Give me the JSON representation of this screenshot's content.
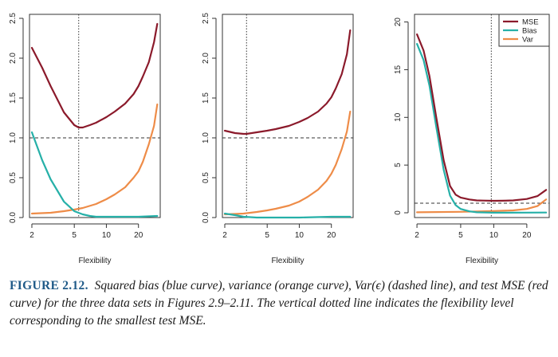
{
  "caption": {
    "label": "FIGURE 2.12.",
    "text": "Squared bias (blue curve), variance (orange curve), Var(ϵ) (dashed line), and test MSE (red curve) for the three data sets in Figures 2.9–2.11. The vertical dotted line indicates the flexibility level corresponding to the smallest test MSE."
  },
  "colors": {
    "mse": "#8b1a2b",
    "bias": "#26b0a8",
    "var": "#ee8c48",
    "axis": "#333333"
  },
  "chart_data": [
    {
      "type": "line",
      "xlabel": "Flexibility",
      "x_scale": "log",
      "xlim": [
        1.9,
        32
      ],
      "ylim": [
        0,
        2.55
      ],
      "x_ticks": [
        2,
        5,
        10,
        20
      ],
      "y_ticks": [
        0.0,
        0.5,
        1.0,
        1.5,
        2.0,
        2.5
      ],
      "y_tick_labels": [
        "0.0",
        "0.5",
        "1.0",
        "1.5",
        "2.0",
        "2.5"
      ],
      "hline": 1.0,
      "vline": 5.5,
      "series": [
        {
          "key": "mse",
          "x": [
            2,
            2.5,
            3,
            4,
            5,
            5.5,
            6,
            7,
            8,
            10,
            12,
            15,
            18,
            20,
            22,
            25,
            28,
            30
          ],
          "y": [
            2.13,
            1.88,
            1.65,
            1.32,
            1.16,
            1.13,
            1.13,
            1.16,
            1.19,
            1.26,
            1.33,
            1.43,
            1.55,
            1.65,
            1.77,
            1.95,
            2.2,
            2.43
          ]
        },
        {
          "key": "bias",
          "x": [
            2,
            2.5,
            3,
            4,
            5,
            6,
            7,
            8,
            10,
            15,
            20,
            30
          ],
          "y": [
            1.07,
            0.72,
            0.48,
            0.2,
            0.08,
            0.04,
            0.02,
            0.01,
            0.01,
            0.01,
            0.01,
            0.02
          ]
        },
        {
          "key": "var",
          "x": [
            2,
            3,
            4,
            5,
            6,
            8,
            10,
            12,
            15,
            18,
            20,
            22,
            25,
            28,
            30
          ],
          "y": [
            0.05,
            0.06,
            0.08,
            0.1,
            0.12,
            0.17,
            0.23,
            0.29,
            0.38,
            0.5,
            0.58,
            0.7,
            0.92,
            1.15,
            1.42
          ]
        }
      ]
    },
    {
      "type": "line",
      "xlabel": "Flexibility",
      "x_scale": "log",
      "xlim": [
        1.9,
        32
      ],
      "ylim": [
        0,
        2.55
      ],
      "x_ticks": [
        2,
        5,
        10,
        20
      ],
      "y_ticks": [
        0.0,
        0.5,
        1.0,
        1.5,
        2.0,
        2.5
      ],
      "y_tick_labels": [
        "0.0",
        "0.5",
        "1.0",
        "1.5",
        "2.0",
        "2.5"
      ],
      "hline": 1.0,
      "vline": 3.2,
      "series": [
        {
          "key": "mse",
          "x": [
            2,
            2.5,
            3,
            3.2,
            4,
            5,
            6,
            8,
            10,
            12,
            15,
            18,
            20,
            22,
            25,
            28,
            30
          ],
          "y": [
            1.09,
            1.06,
            1.05,
            1.05,
            1.07,
            1.09,
            1.11,
            1.15,
            1.2,
            1.25,
            1.33,
            1.43,
            1.51,
            1.62,
            1.8,
            2.05,
            2.35
          ]
        },
        {
          "key": "bias",
          "x": [
            2,
            2.5,
            3,
            4,
            5,
            10,
            20,
            30
          ],
          "y": [
            0.05,
            0.03,
            0.01,
            0.0,
            0.0,
            0.0,
            0.01,
            0.01
          ]
        },
        {
          "key": "var",
          "x": [
            2,
            3,
            4,
            5,
            6,
            8,
            10,
            12,
            15,
            18,
            20,
            22,
            25,
            28,
            30
          ],
          "y": [
            0.04,
            0.05,
            0.07,
            0.09,
            0.11,
            0.15,
            0.2,
            0.26,
            0.35,
            0.46,
            0.55,
            0.66,
            0.86,
            1.08,
            1.33
          ]
        }
      ]
    },
    {
      "type": "line",
      "xlabel": "Flexibility",
      "x_scale": "log",
      "xlim": [
        1.9,
        32
      ],
      "ylim": [
        -0.5,
        20.8
      ],
      "x_ticks": [
        2,
        5,
        10,
        20
      ],
      "y_ticks": [
        0,
        5,
        10,
        15,
        20
      ],
      "y_tick_labels": [
        "0",
        "5",
        "10",
        "15",
        "20"
      ],
      "hline": 1.0,
      "vline": 9.5,
      "legend_position": "top-right",
      "legend": [
        "MSE",
        "Bias",
        "Var"
      ],
      "series": [
        {
          "key": "mse",
          "x": [
            2,
            2.3,
            2.6,
            3,
            3.5,
            4,
            4.5,
            5,
            6,
            7,
            8,
            10,
            12,
            15,
            20,
            25,
            30
          ],
          "y": [
            18.7,
            17.0,
            14.3,
            10.0,
            5.5,
            2.8,
            1.9,
            1.6,
            1.4,
            1.3,
            1.28,
            1.25,
            1.26,
            1.3,
            1.45,
            1.75,
            2.4
          ]
        },
        {
          "key": "bias",
          "x": [
            2,
            2.3,
            2.6,
            3,
            3.5,
            4,
            4.5,
            5,
            6,
            7,
            10,
            20,
            30
          ],
          "y": [
            17.7,
            16.0,
            13.3,
            9.0,
            4.5,
            1.8,
            0.8,
            0.4,
            0.15,
            0.05,
            0.01,
            0.02,
            0.03
          ]
        },
        {
          "key": "var",
          "x": [
            2,
            5,
            10,
            15,
            20,
            25,
            30
          ],
          "y": [
            0.05,
            0.1,
            0.18,
            0.25,
            0.4,
            0.7,
            1.4
          ]
        }
      ]
    }
  ]
}
